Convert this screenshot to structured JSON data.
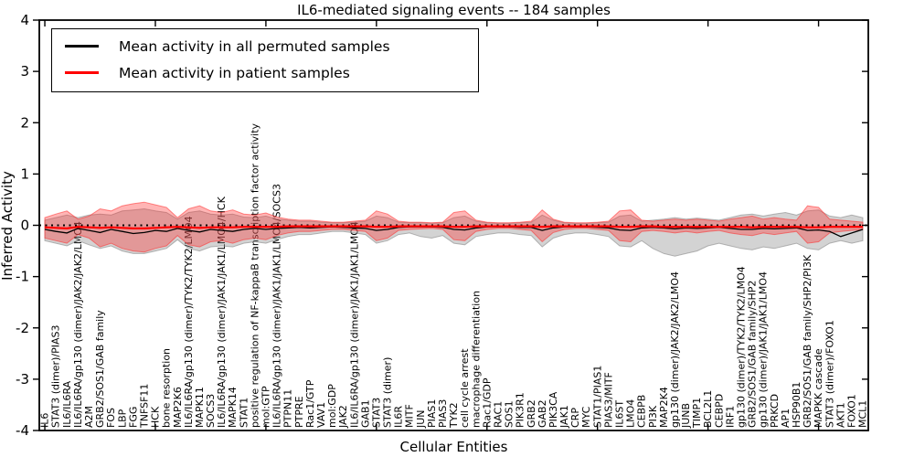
{
  "title": "IL6-mediated signaling events -- 184 samples",
  "legend": {
    "items": [
      {
        "label": "Mean activity in all permuted samples",
        "color": "#000000"
      },
      {
        "label": "Mean activity in patient samples",
        "color": "#ff0000"
      }
    ]
  },
  "axes": {
    "ylabel": "Inferred Activity",
    "xlabel": "Cellular Entities",
    "yticks": [
      4,
      3,
      2,
      1,
      0,
      -1,
      -2,
      -3,
      -4
    ],
    "ylim": [
      -4,
      4
    ]
  },
  "chart_data": {
    "type": "line",
    "title": "IL6-mediated signaling events -- 184 samples",
    "xlabel": "Cellular Entities",
    "ylabel": "Inferred Activity",
    "ylim": [
      -4,
      4
    ],
    "grid": false,
    "legend_position": "upper left",
    "categories": [
      "IL6",
      "STAT3 (dimer)/PIAS3",
      "IL6/IL6RA",
      "IL6/IL6RA/gp130 (dimer)/JAK2/JAK2/LMO4",
      "A2M",
      "GRB2/SOS1/GAB family",
      "FOS",
      "LBP",
      "FGG",
      "TNFSF11",
      "HCK",
      "bone resorption",
      "MAP2K6",
      "IL6/IL6RA/gp130 (dimer)/TYK2/TYK2/LMO4",
      "MAPK11",
      "SOCS3",
      "IL6/IL6RA/gp130 (dimer)/JAK1/JAK1/LMO4/HCK",
      "MAPK14",
      "STAT1",
      "positive regulation of NF-kappaB transcription factor activity",
      "mol:GTP",
      "IL6/IL6RA/gp130 (dimer)/JAK1/JAK1/LMO4/SOCS3",
      "PTPN11",
      "PTPRE",
      "Rac1/GTP",
      "VAV1",
      "mol:GDP",
      "JAK2",
      "IL6/IL6RA/gp130 (dimer)/JAK1/JAK1/LMO4",
      "GAB1",
      "STAT3",
      "STAT3 (dimer)",
      "IL6R",
      "MITF",
      "JUN",
      "PIAS1",
      "PIAS3",
      "TYK2",
      "cell cycle arrest",
      "macrophage differentiation",
      "Rac1/GDP",
      "RAC1",
      "SOS1",
      "PIK3R1",
      "GRB2",
      "GAB2",
      "PIK3CA",
      "JAK1",
      "CRP",
      "MYC",
      "STAT1/PIAS1",
      "PIAS3/MITF",
      "IL6ST",
      "LMO4",
      "CEBPB",
      "PI3K",
      "MAP2K4",
      "gp130 (dimer)/JAK2/JAK2/LMO4",
      "JUNB",
      "TIMP1",
      "BCL2L1",
      "CEBPD",
      "IRF1",
      "gp130 (dimer)/TYK2/TYK2/LMO4",
      "GRB2/SOS1/GAB family/SHP2",
      "gp130 (dimer)/JAK1/JAK1/LMO4",
      "PRKCD",
      "AP1",
      "HSP90B1",
      "GRB2/SOS1/GAB family/SHP2/PI3K",
      "MAPKK cascade",
      "STAT3 (dimer)/FOXO1",
      "AKT1",
      "FOXO1",
      "MCL1"
    ],
    "series": [
      {
        "name": "Mean activity in all permuted samples",
        "color": "#000000",
        "values": [
          -0.08,
          -0.12,
          -0.15,
          -0.06,
          -0.1,
          -0.14,
          -0.08,
          -0.12,
          -0.16,
          -0.14,
          -0.1,
          -0.12,
          -0.06,
          -0.1,
          -0.13,
          -0.08,
          -0.1,
          -0.12,
          -0.08,
          -0.06,
          -0.08,
          -0.06,
          -0.05,
          -0.04,
          -0.05,
          -0.04,
          -0.03,
          -0.04,
          -0.05,
          -0.06,
          -0.1,
          -0.08,
          -0.04,
          -0.03,
          -0.03,
          -0.03,
          -0.04,
          -0.08,
          -0.09,
          -0.05,
          -0.03,
          -0.03,
          -0.03,
          -0.04,
          -0.04,
          -0.1,
          -0.05,
          -0.03,
          -0.03,
          -0.03,
          -0.04,
          -0.05,
          -0.09,
          -0.1,
          -0.05,
          -0.04,
          -0.05,
          -0.07,
          -0.05,
          -0.06,
          -0.05,
          -0.04,
          -0.06,
          -0.08,
          -0.08,
          -0.06,
          -0.07,
          -0.06,
          -0.05,
          -0.1,
          -0.09,
          -0.12,
          -0.22,
          -0.15,
          -0.08
        ]
      },
      {
        "name": "Mean activity in patient samples",
        "color": "#ff0000",
        "values": [
          -0.04,
          -0.05,
          -0.06,
          -0.03,
          -0.04,
          -0.05,
          -0.04,
          -0.05,
          -0.06,
          -0.06,
          -0.05,
          -0.04,
          -0.03,
          -0.04,
          -0.05,
          -0.04,
          -0.04,
          -0.04,
          -0.03,
          -0.03,
          -0.03,
          -0.03,
          -0.02,
          -0.02,
          -0.02,
          -0.02,
          -0.02,
          -0.02,
          -0.02,
          -0.02,
          -0.03,
          -0.03,
          -0.02,
          -0.02,
          -0.02,
          -0.02,
          -0.02,
          -0.03,
          -0.03,
          -0.02,
          -0.02,
          -0.02,
          -0.02,
          -0.02,
          -0.02,
          -0.03,
          -0.02,
          -0.02,
          -0.02,
          -0.02,
          -0.02,
          -0.02,
          -0.03,
          -0.03,
          -0.02,
          -0.02,
          -0.03,
          -0.03,
          -0.03,
          -0.03,
          -0.03,
          -0.03,
          -0.03,
          -0.03,
          -0.04,
          -0.03,
          -0.03,
          -0.03,
          -0.03,
          -0.04,
          -0.04,
          -0.03,
          -0.03,
          -0.03,
          -0.03
        ]
      }
    ],
    "bands": [
      {
        "name": "permuted samples spread",
        "color": "#808080",
        "opacity": 0.35,
        "upper": [
          0.1,
          0.15,
          0.2,
          0.15,
          0.2,
          0.22,
          0.2,
          0.28,
          0.3,
          0.32,
          0.28,
          0.25,
          0.12,
          0.25,
          0.28,
          0.22,
          0.2,
          0.22,
          0.16,
          0.15,
          0.18,
          0.12,
          0.1,
          0.08,
          0.08,
          0.06,
          0.05,
          0.05,
          0.06,
          0.08,
          0.18,
          0.15,
          0.06,
          0.05,
          0.05,
          0.04,
          0.05,
          0.15,
          0.18,
          0.08,
          0.05,
          0.04,
          0.04,
          0.05,
          0.06,
          0.2,
          0.1,
          0.05,
          0.04,
          0.04,
          0.05,
          0.06,
          0.18,
          0.2,
          0.08,
          0.1,
          0.12,
          0.15,
          0.12,
          0.14,
          0.12,
          0.1,
          0.15,
          0.2,
          0.22,
          0.18,
          0.22,
          0.25,
          0.2,
          0.28,
          0.3,
          0.18,
          0.15,
          0.2,
          0.15
        ],
        "lower": [
          -0.3,
          -0.35,
          -0.4,
          -0.3,
          -0.38,
          -0.45,
          -0.4,
          -0.5,
          -0.55,
          -0.55,
          -0.5,
          -0.45,
          -0.28,
          -0.45,
          -0.5,
          -0.42,
          -0.4,
          -0.42,
          -0.35,
          -0.32,
          -0.35,
          -0.28,
          -0.22,
          -0.18,
          -0.18,
          -0.15,
          -0.12,
          -0.12,
          -0.15,
          -0.18,
          -0.35,
          -0.3,
          -0.18,
          -0.15,
          -0.22,
          -0.25,
          -0.2,
          -0.35,
          -0.38,
          -0.22,
          -0.18,
          -0.15,
          -0.15,
          -0.18,
          -0.2,
          -0.42,
          -0.25,
          -0.18,
          -0.15,
          -0.15,
          -0.18,
          -0.22,
          -0.4,
          -0.42,
          -0.3,
          -0.45,
          -0.55,
          -0.6,
          -0.55,
          -0.5,
          -0.4,
          -0.35,
          -0.4,
          -0.45,
          -0.48,
          -0.42,
          -0.45,
          -0.4,
          -0.35,
          -0.45,
          -0.48,
          -0.35,
          -0.3,
          -0.35,
          -0.3
        ]
      },
      {
        "name": "patient samples spread",
        "color": "#ff2a2a",
        "opacity": 0.35,
        "upper": [
          0.15,
          0.22,
          0.28,
          0.12,
          0.18,
          0.32,
          0.28,
          0.38,
          0.42,
          0.45,
          0.4,
          0.35,
          0.15,
          0.32,
          0.38,
          0.28,
          0.25,
          0.3,
          0.22,
          0.2,
          0.24,
          0.16,
          0.12,
          0.1,
          0.1,
          0.08,
          0.06,
          0.06,
          0.08,
          0.1,
          0.28,
          0.22,
          0.08,
          0.06,
          0.06,
          0.05,
          0.06,
          0.25,
          0.28,
          0.1,
          0.06,
          0.05,
          0.05,
          0.06,
          0.08,
          0.3,
          0.12,
          0.06,
          0.05,
          0.05,
          0.06,
          0.08,
          0.28,
          0.3,
          0.1,
          0.08,
          0.1,
          0.12,
          0.1,
          0.12,
          0.1,
          0.08,
          0.12,
          0.15,
          0.18,
          0.12,
          0.15,
          0.12,
          0.1,
          0.38,
          0.35,
          0.12,
          0.1,
          0.08,
          0.06
        ],
        "lower": [
          -0.25,
          -0.3,
          -0.35,
          -0.18,
          -0.25,
          -0.42,
          -0.35,
          -0.45,
          -0.5,
          -0.52,
          -0.45,
          -0.4,
          -0.2,
          -0.38,
          -0.42,
          -0.32,
          -0.3,
          -0.35,
          -0.28,
          -0.25,
          -0.28,
          -0.2,
          -0.15,
          -0.12,
          -0.12,
          -0.1,
          -0.08,
          -0.08,
          -0.1,
          -0.12,
          -0.3,
          -0.25,
          -0.1,
          -0.08,
          -0.07,
          -0.06,
          -0.08,
          -0.28,
          -0.3,
          -0.12,
          -0.08,
          -0.06,
          -0.06,
          -0.08,
          -0.1,
          -0.32,
          -0.14,
          -0.08,
          -0.06,
          -0.06,
          -0.08,
          -0.1,
          -0.3,
          -0.32,
          -0.12,
          -0.1,
          -0.12,
          -0.15,
          -0.12,
          -0.15,
          -0.12,
          -0.1,
          -0.15,
          -0.18,
          -0.2,
          -0.15,
          -0.18,
          -0.15,
          -0.12,
          -0.35,
          -0.32,
          -0.15,
          -0.12,
          -0.1,
          -0.08
        ]
      }
    ],
    "zero_line": {
      "style": "dotted",
      "color": "#000000",
      "y": 0
    }
  }
}
